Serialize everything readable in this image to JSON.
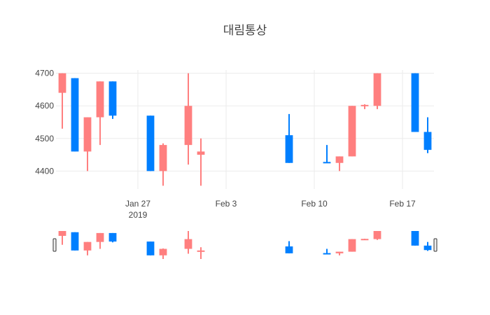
{
  "chart_data": {
    "type": "candlestick",
    "title": "대림통상",
    "xlabel": "",
    "ylabel": "",
    "increasing_color": "#ff7f7f",
    "decreasing_color": "#007fff",
    "grid": true,
    "ylim": [
      4345,
      4710
    ],
    "xlim": [
      "2019-01-21",
      "2019-02-19"
    ],
    "x_ticks": [
      {
        "date": "2019-01-27",
        "label": "Jan 27",
        "sublabel": "2019"
      },
      {
        "date": "2019-02-03",
        "label": "Feb 3",
        "sublabel": ""
      },
      {
        "date": "2019-02-10",
        "label": "Feb 10",
        "sublabel": ""
      },
      {
        "date": "2019-02-17",
        "label": "Feb 17",
        "sublabel": ""
      }
    ],
    "y_ticks": [
      4400,
      4500,
      4600,
      4700
    ],
    "rangeslider": true,
    "candles": [
      {
        "date": "2019-01-21",
        "open": 4640,
        "high": 4700,
        "low": 4530,
        "close": 4700
      },
      {
        "date": "2019-01-22",
        "open": 4685,
        "high": 4685,
        "low": 4460,
        "close": 4460
      },
      {
        "date": "2019-01-23",
        "open": 4460,
        "high": 4565,
        "low": 4400,
        "close": 4565
      },
      {
        "date": "2019-01-24",
        "open": 4565,
        "high": 4675,
        "low": 4480,
        "close": 4675
      },
      {
        "date": "2019-01-25",
        "open": 4675,
        "high": 4675,
        "low": 4560,
        "close": 4570
      },
      {
        "date": "2019-01-28",
        "open": 4570,
        "high": 4570,
        "low": 4400,
        "close": 4400
      },
      {
        "date": "2019-01-29",
        "open": 4400,
        "high": 4485,
        "low": 4355,
        "close": 4480
      },
      {
        "date": "2019-01-31",
        "open": 4480,
        "high": 4700,
        "low": 4420,
        "close": 4600
      },
      {
        "date": "2019-02-01",
        "open": 4450,
        "high": 4500,
        "low": 4355,
        "close": 4460
      },
      {
        "date": "2019-02-08",
        "open": 4510,
        "high": 4575,
        "low": 4425,
        "close": 4425
      },
      {
        "date": "2019-02-11",
        "open": 4428,
        "high": 4480,
        "low": 4425,
        "close": 4425
      },
      {
        "date": "2019-02-12",
        "open": 4425,
        "high": 4445,
        "low": 4400,
        "close": 4445
      },
      {
        "date": "2019-02-13",
        "open": 4445,
        "high": 4600,
        "low": 4445,
        "close": 4600
      },
      {
        "date": "2019-02-14",
        "open": 4600,
        "high": 4605,
        "low": 4590,
        "close": 4603
      },
      {
        "date": "2019-02-15",
        "open": 4600,
        "high": 4700,
        "low": 4590,
        "close": 4700
      },
      {
        "date": "2019-02-18",
        "open": 4700,
        "high": 4700,
        "low": 4520,
        "close": 4520
      },
      {
        "date": "2019-02-19",
        "open": 4520,
        "high": 4565,
        "low": 4455,
        "close": 4465
      }
    ]
  }
}
